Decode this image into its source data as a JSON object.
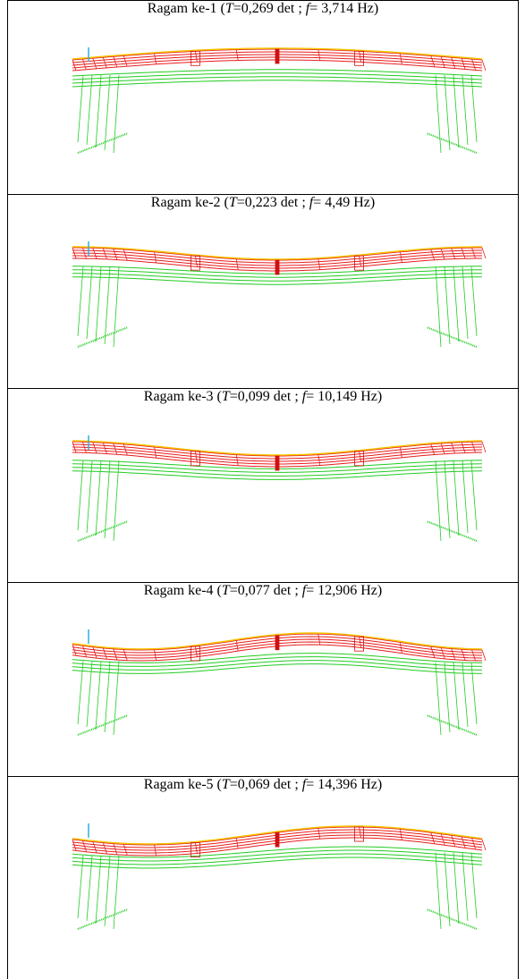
{
  "table": {
    "rows": [
      {
        "label": "Ragam ke-1 (",
        "period_symbol": "T",
        "period": "=0,269 det ; ",
        "frequency_symbol": "f",
        "frequency": "= 3,714 Hz)"
      },
      {
        "label": "Ragam ke-2 (",
        "period_symbol": "T",
        "period": "=0,223 det ; ",
        "frequency_symbol": "f",
        "frequency": "= 4,49 Hz)"
      },
      {
        "label": "Ragam ke-3 (",
        "period_symbol": "T",
        "period": "=0,099 det ; ",
        "frequency_symbol": "f",
        "frequency": "= 10,149 Hz)"
      },
      {
        "label": "Ragam ke-4 (",
        "period_symbol": "T",
        "period": "=0,077 det ; ",
        "frequency_symbol": "f",
        "frequency": "= 12,906 Hz)"
      },
      {
        "label": "Ragam ke-5 (",
        "period_symbol": "T",
        "period": "=0,069 det ; ",
        "frequency_symbol": "f",
        "frequency": "= 14,396 Hz)"
      }
    ]
  }
}
